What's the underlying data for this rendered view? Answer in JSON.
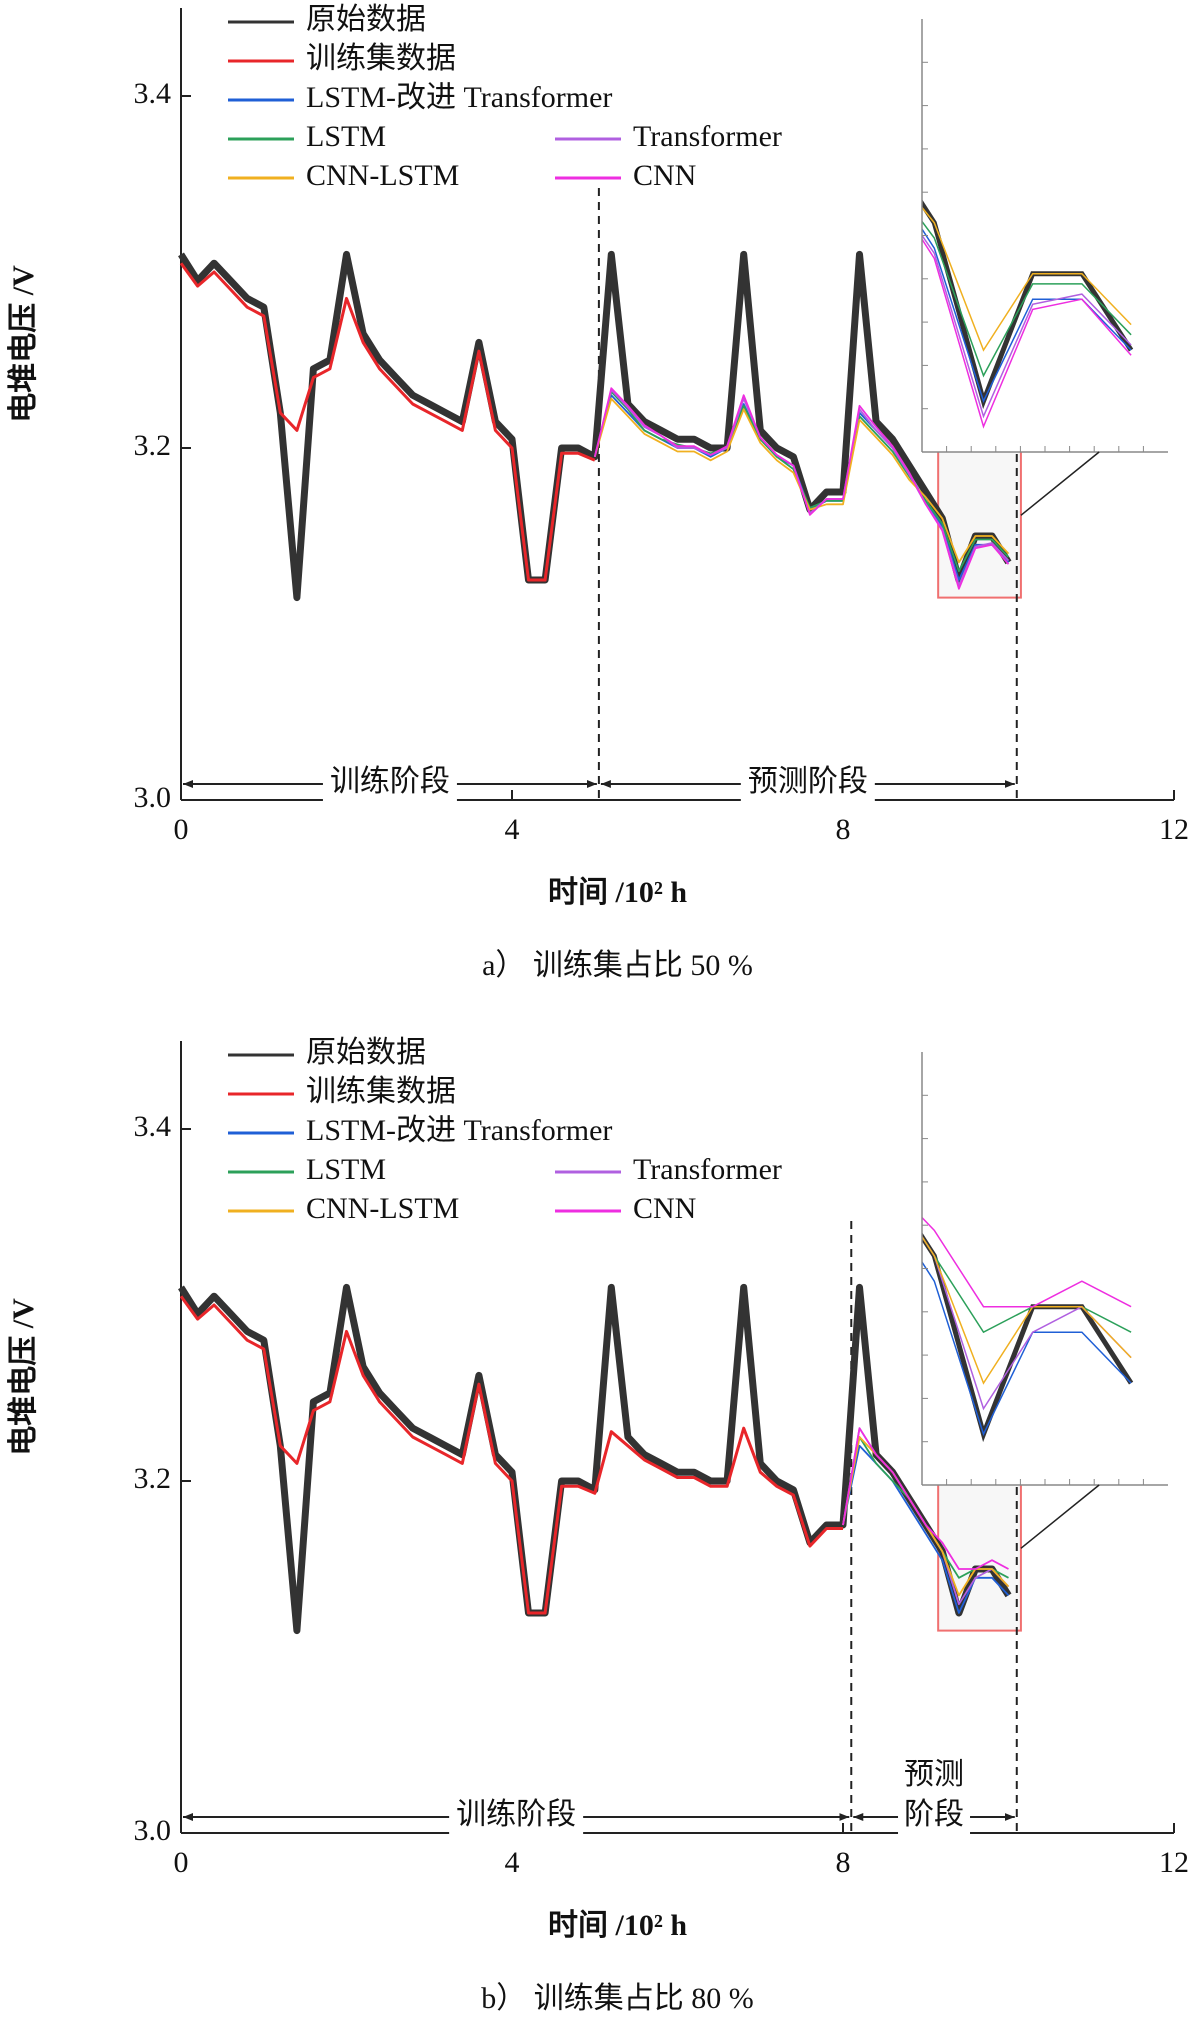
{
  "chart_data": [
    {
      "type": "line",
      "caption": "a） 训练集占比 50 %",
      "xlabel": "时间 /10² h",
      "ylabel": "电堆电压 /V",
      "xlim": [
        0,
        12
      ],
      "xticks": [
        0,
        4,
        8,
        12
      ],
      "ylim": [
        3.0,
        3.45
      ],
      "yticks": [
        {
          "value": 3.0,
          "label": "3.0"
        },
        {
          "value": 3.2,
          "label": "3.2"
        },
        {
          "value": 3.4,
          "label": "3.4"
        }
      ],
      "phase_boundaries": [
        5.05,
        10.1
      ],
      "phase_labels": [
        "训练阶段",
        "预测阶段"
      ],
      "zoom_xlim": [
        9.15,
        10.15
      ],
      "zoom_ylim": [
        3.115,
        3.2
      ],
      "x": [
        0,
        0.2,
        0.4,
        0.6,
        0.8,
        1.0,
        1.2,
        1.4,
        1.6,
        1.8,
        2.0,
        2.2,
        2.4,
        2.6,
        2.8,
        3.0,
        3.2,
        3.4,
        3.6,
        3.8,
        4.0,
        4.2,
        4.4,
        4.6,
        4.8,
        5.0,
        5.2,
        5.4,
        5.6,
        5.8,
        6.0,
        6.2,
        6.4,
        6.6,
        6.8,
        7.0,
        7.2,
        7.4,
        7.6,
        7.8,
        8.0,
        8.2,
        8.4,
        8.6,
        8.8,
        9.0,
        9.2,
        9.4,
        9.6,
        9.8,
        10.0
      ],
      "series": [
        {
          "name": "原始数据",
          "color": "#333333",
          "values": [
            3.31,
            3.295,
            3.305,
            3.295,
            3.285,
            3.28,
            3.22,
            3.115,
            3.245,
            3.25,
            3.31,
            3.265,
            3.25,
            3.24,
            3.23,
            3.225,
            3.22,
            3.215,
            3.26,
            3.215,
            3.205,
            3.125,
            3.125,
            3.2,
            3.2,
            3.195,
            3.31,
            3.225,
            3.215,
            3.21,
            3.205,
            3.205,
            3.2,
            3.2,
            3.31,
            3.21,
            3.2,
            3.195,
            3.165,
            3.175,
            3.175,
            3.31,
            3.215,
            3.205,
            3.19,
            3.175,
            3.16,
            3.125,
            3.15,
            3.15,
            3.135
          ]
        },
        {
          "name": "训练集数据",
          "color": "#e8262a",
          "values": [
            3.305,
            3.292,
            3.3,
            3.29,
            3.28,
            3.275,
            3.22,
            3.21,
            3.24,
            3.245,
            3.285,
            3.26,
            3.245,
            3.235,
            3.225,
            3.22,
            3.215,
            3.21,
            3.255,
            3.21,
            3.2,
            3.125,
            3.125,
            3.197,
            3.197,
            3.193,
            null,
            null,
            null,
            null,
            null,
            null,
            null,
            null,
            null,
            null,
            null,
            null,
            null,
            null,
            null,
            null,
            null,
            null,
            null,
            null,
            null,
            null,
            null,
            null,
            null
          ]
        },
        {
          "name": "LSTM-改进 Transformer",
          "color": "#1f5fd6",
          "values": [
            null,
            null,
            null,
            null,
            null,
            null,
            null,
            null,
            null,
            null,
            null,
            null,
            null,
            null,
            null,
            null,
            null,
            null,
            null,
            null,
            null,
            null,
            null,
            null,
            null,
            3.195,
            3.23,
            3.22,
            3.21,
            3.205,
            3.2,
            3.2,
            3.195,
            3.2,
            3.225,
            3.205,
            3.195,
            3.19,
            3.165,
            3.17,
            3.17,
            3.22,
            3.21,
            3.2,
            3.185,
            3.17,
            3.155,
            3.125,
            3.145,
            3.145,
            3.135
          ]
        },
        {
          "name": "LSTM",
          "color": "#2ca05a",
          "values": [
            null,
            null,
            null,
            null,
            null,
            null,
            null,
            null,
            null,
            null,
            null,
            null,
            null,
            null,
            null,
            null,
            null,
            null,
            null,
            null,
            null,
            null,
            null,
            null,
            null,
            3.195,
            3.232,
            3.222,
            3.21,
            3.205,
            3.202,
            3.2,
            3.197,
            3.2,
            3.224,
            3.205,
            3.195,
            3.188,
            3.166,
            3.17,
            3.17,
            3.218,
            3.208,
            3.198,
            3.184,
            3.17,
            3.157,
            3.13,
            3.148,
            3.148,
            3.138
          ]
        },
        {
          "name": "Transformer",
          "color": "#b060e0",
          "values": [
            null,
            null,
            null,
            null,
            null,
            null,
            null,
            null,
            null,
            null,
            null,
            null,
            null,
            null,
            null,
            null,
            null,
            null,
            null,
            null,
            null,
            null,
            null,
            null,
            null,
            3.195,
            3.233,
            3.223,
            3.212,
            3.207,
            3.2,
            3.2,
            3.196,
            3.2,
            3.228,
            3.206,
            3.196,
            3.19,
            3.163,
            3.171,
            3.171,
            3.222,
            3.21,
            3.2,
            3.185,
            3.168,
            3.154,
            3.122,
            3.144,
            3.146,
            3.136
          ]
        },
        {
          "name": "CNN-LSTM",
          "color": "#f0b020",
          "values": [
            null,
            null,
            null,
            null,
            null,
            null,
            null,
            null,
            null,
            null,
            null,
            null,
            null,
            null,
            null,
            null,
            null,
            null,
            null,
            null,
            null,
            null,
            null,
            null,
            null,
            3.195,
            3.228,
            3.218,
            3.208,
            3.203,
            3.198,
            3.198,
            3.193,
            3.198,
            3.222,
            3.203,
            3.193,
            3.186,
            3.165,
            3.168,
            3.168,
            3.216,
            3.206,
            3.196,
            3.182,
            3.172,
            3.16,
            3.135,
            3.15,
            3.15,
            3.14
          ]
        },
        {
          "name": "CNN",
          "color": "#ee2ee0",
          "values": [
            null,
            null,
            null,
            null,
            null,
            null,
            null,
            null,
            null,
            null,
            null,
            null,
            null,
            null,
            null,
            null,
            null,
            null,
            null,
            null,
            null,
            null,
            null,
            null,
            null,
            3.195,
            3.234,
            3.224,
            3.213,
            3.207,
            3.201,
            3.201,
            3.196,
            3.201,
            3.23,
            3.206,
            3.196,
            3.19,
            3.162,
            3.171,
            3.171,
            3.224,
            3.212,
            3.201,
            3.186,
            3.168,
            3.153,
            3.12,
            3.143,
            3.145,
            3.134
          ]
        }
      ]
    },
    {
      "type": "line",
      "caption": "b） 训练集占比 80 %",
      "xlabel": "时间 /10² h",
      "ylabel": "电堆电压 /V",
      "xlim": [
        0,
        12
      ],
      "xticks": [
        0,
        4,
        8,
        12
      ],
      "ylim": [
        3.0,
        3.45
      ],
      "yticks": [
        {
          "value": 3.0,
          "label": "3.0"
        },
        {
          "value": 3.2,
          "label": "3.2"
        },
        {
          "value": 3.4,
          "label": "3.4"
        }
      ],
      "phase_boundaries": [
        8.1,
        10.1
      ],
      "phase_labels": [
        "训练阶段",
        [
          "预测",
          "阶段"
        ]
      ],
      "zoom_xlim": [
        9.15,
        10.15
      ],
      "zoom_ylim": [
        3.115,
        3.2
      ],
      "x": [
        0,
        0.2,
        0.4,
        0.6,
        0.8,
        1.0,
        1.2,
        1.4,
        1.6,
        1.8,
        2.0,
        2.2,
        2.4,
        2.6,
        2.8,
        3.0,
        3.2,
        3.4,
        3.6,
        3.8,
        4.0,
        4.2,
        4.4,
        4.6,
        4.8,
        5.0,
        5.2,
        5.4,
        5.6,
        5.8,
        6.0,
        6.2,
        6.4,
        6.6,
        6.8,
        7.0,
        7.2,
        7.4,
        7.6,
        7.8,
        8.0,
        8.2,
        8.4,
        8.6,
        8.8,
        9.0,
        9.2,
        9.4,
        9.6,
        9.8,
        10.0
      ],
      "series": [
        {
          "name": "原始数据",
          "color": "#333333",
          "values": [
            3.31,
            3.295,
            3.305,
            3.295,
            3.285,
            3.28,
            3.22,
            3.115,
            3.245,
            3.25,
            3.31,
            3.265,
            3.25,
            3.24,
            3.23,
            3.225,
            3.22,
            3.215,
            3.26,
            3.215,
            3.205,
            3.125,
            3.125,
            3.2,
            3.2,
            3.195,
            3.31,
            3.225,
            3.215,
            3.21,
            3.205,
            3.205,
            3.2,
            3.2,
            3.31,
            3.21,
            3.2,
            3.195,
            3.165,
            3.175,
            3.175,
            3.31,
            3.215,
            3.205,
            3.19,
            3.175,
            3.16,
            3.125,
            3.15,
            3.15,
            3.135
          ]
        },
        {
          "name": "训练集数据",
          "color": "#e8262a",
          "values": [
            3.305,
            3.292,
            3.3,
            3.29,
            3.28,
            3.275,
            3.22,
            3.21,
            3.24,
            3.245,
            3.285,
            3.26,
            3.245,
            3.235,
            3.225,
            3.22,
            3.215,
            3.21,
            3.255,
            3.21,
            3.2,
            3.125,
            3.125,
            3.197,
            3.197,
            3.193,
            3.228,
            3.22,
            3.212,
            3.207,
            3.202,
            3.202,
            3.197,
            3.197,
            3.23,
            3.205,
            3.197,
            3.192,
            3.163,
            3.173,
            3.173,
            null,
            null,
            null,
            null,
            null,
            null,
            null,
            null,
            null,
            null
          ]
        },
        {
          "name": "LSTM-改进 Transformer",
          "color": "#1f5fd6",
          "values": [
            null,
            null,
            null,
            null,
            null,
            null,
            null,
            null,
            null,
            null,
            null,
            null,
            null,
            null,
            null,
            null,
            null,
            null,
            null,
            null,
            null,
            null,
            null,
            null,
            null,
            null,
            null,
            null,
            null,
            null,
            null,
            null,
            null,
            null,
            null,
            null,
            null,
            null,
            null,
            null,
            3.175,
            3.22,
            3.21,
            3.2,
            3.185,
            3.17,
            3.155,
            3.125,
            3.145,
            3.145,
            3.135
          ]
        },
        {
          "name": "LSTM",
          "color": "#2ca05a",
          "values": [
            null,
            null,
            null,
            null,
            null,
            null,
            null,
            null,
            null,
            null,
            null,
            null,
            null,
            null,
            null,
            null,
            null,
            null,
            null,
            null,
            null,
            null,
            null,
            null,
            null,
            null,
            null,
            null,
            null,
            null,
            null,
            null,
            null,
            null,
            null,
            null,
            null,
            null,
            null,
            null,
            3.175,
            3.225,
            3.21,
            3.2,
            3.19,
            3.175,
            3.16,
            3.145,
            3.15,
            3.15,
            3.145
          ]
        },
        {
          "name": "Transformer",
          "color": "#b060e0",
          "values": [
            null,
            null,
            null,
            null,
            null,
            null,
            null,
            null,
            null,
            null,
            null,
            null,
            null,
            null,
            null,
            null,
            null,
            null,
            null,
            null,
            null,
            null,
            null,
            null,
            null,
            null,
            null,
            null,
            null,
            null,
            null,
            null,
            null,
            null,
            null,
            null,
            null,
            null,
            null,
            null,
            3.175,
            3.23,
            3.215,
            3.205,
            3.19,
            3.175,
            3.16,
            3.13,
            3.145,
            3.15,
            3.14
          ]
        },
        {
          "name": "CNN-LSTM",
          "color": "#f0b020",
          "values": [
            null,
            null,
            null,
            null,
            null,
            null,
            null,
            null,
            null,
            null,
            null,
            null,
            null,
            null,
            null,
            null,
            null,
            null,
            null,
            null,
            null,
            null,
            null,
            null,
            null,
            null,
            null,
            null,
            null,
            null,
            null,
            null,
            null,
            null,
            null,
            null,
            null,
            null,
            null,
            null,
            3.175,
            3.225,
            3.215,
            3.205,
            3.19,
            3.175,
            3.16,
            3.135,
            3.15,
            3.15,
            3.14
          ]
        },
        {
          "name": "CNN",
          "color": "#ee2ee0",
          "values": [
            null,
            null,
            null,
            null,
            null,
            null,
            null,
            null,
            null,
            null,
            null,
            null,
            null,
            null,
            null,
            null,
            null,
            null,
            null,
            null,
            null,
            null,
            null,
            null,
            null,
            null,
            null,
            null,
            null,
            null,
            null,
            null,
            null,
            null,
            null,
            null,
            null,
            null,
            null,
            null,
            3.175,
            3.23,
            3.215,
            3.205,
            3.19,
            3.175,
            3.165,
            3.15,
            3.15,
            3.155,
            3.15
          ]
        }
      ]
    }
  ]
}
